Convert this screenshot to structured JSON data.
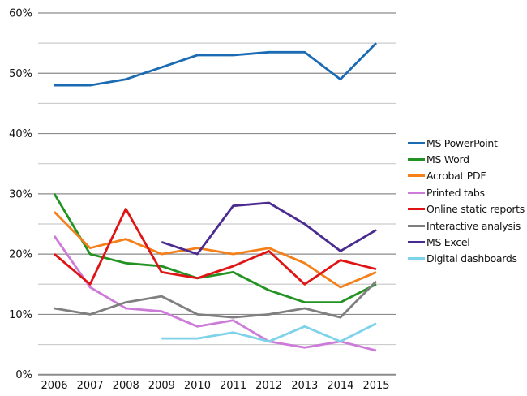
{
  "chart_data": {
    "type": "line",
    "title": "",
    "xlabel": "",
    "ylabel": "",
    "x_labels": [
      "2006",
      "2007",
      "2008",
      "2009",
      "2010",
      "2011",
      "2012",
      "2013",
      "2014",
      "2015"
    ],
    "y_tick_labels": [
      "0%",
      "10%",
      "20%",
      "30%",
      "40%",
      "50%",
      "60%"
    ],
    "ylim": [
      0,
      60
    ],
    "grid": true,
    "gridline_interval": 5,
    "labeled_tick_interval": 10,
    "legend_position": "right",
    "series": [
      {
        "name": "MS PowerPoint",
        "color": "#1a6bb3",
        "values": [
          48,
          48,
          49,
          51,
          53,
          53,
          53.5,
          53.5,
          49,
          55
        ]
      },
      {
        "name": "MS Word",
        "color": "#229322",
        "values": [
          30,
          20,
          18.5,
          18,
          16,
          17,
          14,
          12,
          12,
          15
        ]
      },
      {
        "name": "Acrobat PDF",
        "color": "#f5801a",
        "values": [
          27,
          21,
          22.5,
          20,
          21,
          20,
          21,
          18.5,
          14.5,
          17
        ]
      },
      {
        "name": "Printed tabs",
        "color": "#cd7bd8",
        "values": [
          23,
          14.5,
          11,
          10.5,
          8,
          9,
          5.5,
          4.5,
          5.5,
          4
        ]
      },
      {
        "name": "Online static reports",
        "color": "#e01414",
        "values": [
          20,
          15,
          27.5,
          17,
          16,
          18,
          20.5,
          15,
          19,
          17.5
        ]
      },
      {
        "name": "Interactive analysis",
        "color": "#7f7f7f",
        "values": [
          11,
          10,
          12,
          13,
          10,
          9.5,
          10,
          11,
          9.5,
          15.5
        ]
      },
      {
        "name": "MS Excel",
        "color": "#4b2b91",
        "values": [
          null,
          null,
          null,
          22,
          20,
          28,
          28.5,
          25,
          20.5,
          24
        ]
      },
      {
        "name": "Digital dashboards",
        "color": "#7ed2e9",
        "values": [
          null,
          null,
          null,
          6,
          6,
          7,
          5.5,
          8,
          5.5,
          8.5
        ]
      }
    ]
  },
  "colors": {
    "background": "#ffffff",
    "major_gridline": "#8c8c8c",
    "minor_gridline": "#cccccc",
    "axis_line": "#8c8c8c",
    "text": "#141414"
  }
}
